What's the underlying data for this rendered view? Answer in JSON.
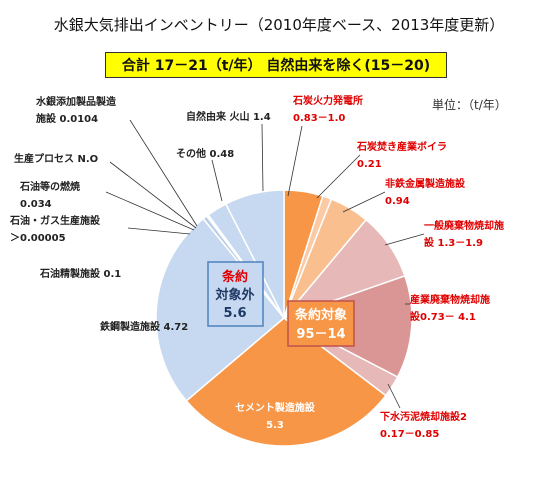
{
  "title": "水銀大気排出インベントリー（2010年度ベース、2013年度更新）",
  "subtitle": "合計 17－21（t/年） 自然由来を除く(15－20)",
  "unit_label": "単位：（t/年）",
  "group_labels": {
    "outside": [
      "条約",
      "対象外",
      "5.6"
    ],
    "inside": [
      "条約対象",
      "95－14"
    ]
  },
  "colors": {
    "covered_label": "#e00000",
    "uncovered_label": "#222222"
  },
  "chart_data": {
    "type": "pie",
    "start_angle_deg": 0,
    "direction": "clockwise",
    "slices": [
      {
        "id": "coal-power",
        "lines": [
          "石炭火力発電所",
          "0.83－1.0"
        ],
        "value": 0.915,
        "color": "#f79646",
        "covered": true
      },
      {
        "id": "coal-boiler",
        "lines": [
          "石炭焚き産業ボイラ",
          "0.21"
        ],
        "value": 0.21,
        "color": "#fbc9a3",
        "covered": true
      },
      {
        "id": "nonferrous",
        "lines": [
          "非鉄金属製造施設",
          "0.94"
        ],
        "value": 0.94,
        "color": "#fabf8f",
        "covered": true
      },
      {
        "id": "general-waste",
        "lines": [
          "一般廃棄物焼却施",
          "設 1.3－1.9"
        ],
        "value": 1.6,
        "color": "#e6b9b8",
        "covered": true
      },
      {
        "id": "industrial-waste",
        "lines": [
          "産業廃棄物焼却施",
          "設0.73－ 4.1"
        ],
        "value": 2.415,
        "color": "#d99694",
        "covered": true
      },
      {
        "id": "sewage-sludge",
        "lines": [
          "下水汚泥焼却施設2",
          "0.17－0.85"
        ],
        "value": 0.51,
        "color": "#e6b9b8",
        "covered": true
      },
      {
        "id": "cement",
        "lines": [
          "セメント製造施設",
          "5.3"
        ],
        "value": 5.3,
        "color": "#f79646",
        "covered": true
      },
      {
        "id": "steel",
        "lines": [
          "鉄鋼製造施設 4.72"
        ],
        "value": 4.72,
        "color": "#c6d9f1",
        "covered": false
      },
      {
        "id": "oil-refinery",
        "lines": [
          "石油精製施設 0.1"
        ],
        "value": 0.1,
        "color": "#b9cde5",
        "covered": false
      },
      {
        "id": "oil-gas-production",
        "lines": [
          "石油・ガス生産施設",
          "＞0.00005"
        ],
        "value": 5e-05,
        "color": "#dbe5f1",
        "covered": false
      },
      {
        "id": "oil-combustion",
        "lines": [
          "石油等の燃焼",
          "0.034"
        ],
        "value": 0.034,
        "color": "#c6d9f1",
        "covered": false
      },
      {
        "id": "production-process",
        "lines": [
          "生産プロセス N.O"
        ],
        "value": 0.0,
        "color": "#c6d9f1",
        "covered": false
      },
      {
        "id": "mercury-products",
        "lines": [
          "水銀添加製品製造",
          "施設 0.0104"
        ],
        "value": 0.0104,
        "color": "#b9cde5",
        "covered": false
      },
      {
        "id": "other",
        "lines": [
          "その他 0.48"
        ],
        "value": 0.48,
        "color": "#c6d9f1",
        "covered": false
      },
      {
        "id": "natural-volcano",
        "lines": [
          "自然由来 火山 1.4"
        ],
        "value": 1.4,
        "color": "#c6d9f1",
        "covered": false
      }
    ]
  }
}
